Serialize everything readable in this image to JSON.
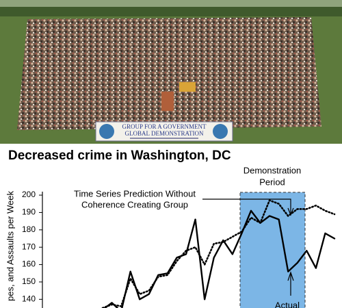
{
  "photo": {
    "banner": [
      "GROUP FOR A GOVERNMENT",
      "GLOBAL DEMONSTRATION"
    ]
  },
  "chart_data": {
    "type": "line",
    "title": "Decreased crime in Washington, DC",
    "y_label": "pes, and Assaults per Week",
    "annotations": {
      "period": [
        "Demonstration",
        "Period"
      ],
      "prediction": [
        "Time Series Prediction Without",
        "Coherence Creating Group"
      ],
      "actual": "Actual"
    },
    "categories": [
      null,
      null,
      null,
      null,
      null,
      null,
      null,
      null,
      null,
      null,
      null,
      null,
      null,
      null,
      null,
      null,
      null,
      null,
      null,
      null,
      null,
      null,
      null,
      null,
      null,
      null
    ],
    "series": [
      {
        "style": "solid",
        "color": "#000000",
        "values": [
          134,
          138,
          133,
          156,
          140,
          143,
          154,
          155,
          164,
          166,
          186,
          140,
          164,
          174,
          166,
          178,
          191,
          184,
          188,
          186,
          156,
          161,
          168,
          158,
          178,
          175
        ]
      },
      {
        "style": "dotted",
        "color": "#000000",
        "values": [
          135,
          137,
          136,
          152,
          143,
          145,
          153,
          154,
          162,
          168,
          170,
          160,
          172,
          173,
          176,
          179,
          187,
          184,
          197,
          195,
          188,
          192,
          192,
          194,
          191,
          189
        ]
      }
    ],
    "ylim": [
      135,
      202
    ],
    "yticks": [
      140,
      150,
      160,
      170,
      180,
      190,
      200
    ]
  }
}
